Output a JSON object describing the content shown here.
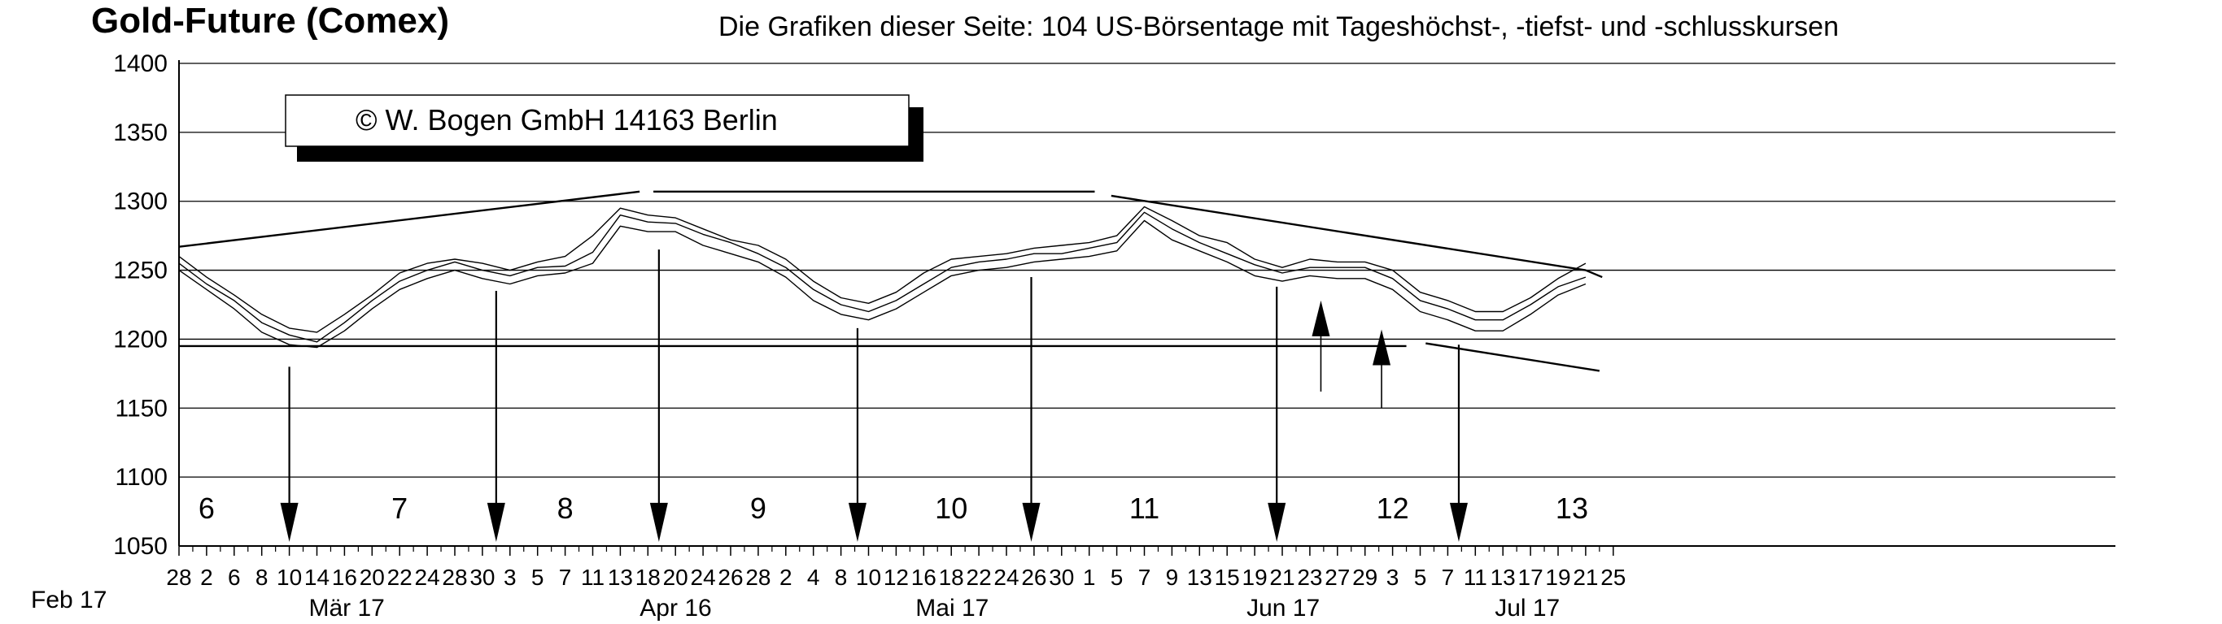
{
  "title": "Gold-Future (Comex)",
  "subtitle": "Die Grafiken dieser Seite: 104 US-Börsentage mit Tageshöchst-, -tiefst- und -schlusskursen",
  "copyright": "©  W. Bogen GmbH 14163 Berlin",
  "colors": {
    "line": "#000000",
    "grid": "#000000",
    "background": "#ffffff"
  },
  "chart_data": {
    "type": "line",
    "ylim": [
      1050,
      1400
    ],
    "yticks": [
      1050,
      1100,
      1150,
      1200,
      1250,
      1300,
      1350,
      1400
    ],
    "grid": "horizontal",
    "xticks": [
      "28",
      "2",
      "6",
      "8",
      "10",
      "14",
      "16",
      "20",
      "22",
      "24",
      "28",
      "30",
      "3",
      "5",
      "7",
      "11",
      "13",
      "18",
      "20",
      "24",
      "26",
      "28",
      "2",
      "4",
      "8",
      "10",
      "12",
      "16",
      "18",
      "22",
      "24",
      "26",
      "30",
      "1",
      "5",
      "7",
      "9",
      "13",
      "15",
      "19",
      "21",
      "23",
      "27",
      "29",
      "3",
      "5",
      "7",
      "11",
      "13",
      "17",
      "19",
      "21",
      "25"
    ],
    "months": [
      {
        "label": "Feb 17",
        "tick": 0
      },
      {
        "label": "Mär 17",
        "tick": 5
      },
      {
        "label": "Apr 16",
        "tick": 17
      },
      {
        "label": "Mai 17",
        "tick": 27
      },
      {
        "label": "Jun 17",
        "tick": 39
      },
      {
        "label": "Jul 17",
        "tick": 48
      }
    ],
    "cycle_labels": [
      {
        "label": "6",
        "tick": 1
      },
      {
        "label": "7",
        "tick": 8
      },
      {
        "label": "8",
        "tick": 14
      },
      {
        "label": "9",
        "tick": 21
      },
      {
        "label": "10",
        "tick": 28
      },
      {
        "label": "11",
        "tick": 35
      },
      {
        "label": "12",
        "tick": 44
      },
      {
        "label": "13",
        "tick": 50.5
      }
    ],
    "series": [
      {
        "x": [
          0,
          1,
          2,
          3,
          4,
          5,
          6,
          7,
          8,
          9,
          10,
          11,
          12,
          13,
          14,
          15,
          16,
          17,
          18,
          19,
          20,
          21,
          22,
          23,
          24,
          25,
          26,
          27,
          28,
          29,
          30,
          31,
          32,
          33,
          34,
          35,
          36,
          37,
          38,
          39,
          40,
          41,
          42,
          43,
          44,
          45,
          46,
          47,
          48,
          49,
          50,
          51
        ],
        "values": [
          1255,
          1240,
          1228,
          1212,
          1203,
          1198,
          1212,
          1228,
          1242,
          1250,
          1256,
          1250,
          1246,
          1252,
          1253,
          1263,
          1290,
          1285,
          1284,
          1276,
          1270,
          1262,
          1252,
          1236,
          1225,
          1220,
          1228,
          1240,
          1252,
          1256,
          1258,
          1262,
          1262,
          1266,
          1270,
          1292,
          1280,
          1270,
          1262,
          1254,
          1248,
          1252,
          1252,
          1252,
          1244,
          1228,
          1222,
          1214,
          1214,
          1225,
          1238,
          1245
        ]
      },
      {
        "x": [
          0,
          1,
          2,
          3,
          4,
          5,
          6,
          7,
          8,
          9,
          10,
          11,
          12,
          13,
          14,
          15,
          16,
          17,
          18,
          19,
          20,
          21,
          22,
          23,
          24,
          25,
          26,
          27,
          28,
          29,
          30,
          31,
          32,
          33,
          34,
          35,
          36,
          37,
          38,
          39,
          40,
          41,
          42,
          43,
          44,
          45,
          46,
          47,
          48,
          49,
          50,
          51
        ],
        "values": [
          1260,
          1245,
          1232,
          1218,
          1208,
          1205,
          1218,
          1232,
          1248,
          1255,
          1258,
          1255,
          1250,
          1256,
          1260,
          1275,
          1295,
          1290,
          1288,
          1280,
          1272,
          1268,
          1258,
          1242,
          1230,
          1226,
          1234,
          1248,
          1258,
          1260,
          1262,
          1266,
          1268,
          1270,
          1275,
          1296,
          1286,
          1275,
          1270,
          1258,
          1252,
          1258,
          1256,
          1256,
          1250,
          1234,
          1228,
          1220,
          1220,
          1230,
          1244,
          1255
        ]
      },
      {
        "x": [
          0,
          1,
          2,
          3,
          4,
          5,
          6,
          7,
          8,
          9,
          10,
          11,
          12,
          13,
          14,
          15,
          16,
          17,
          18,
          19,
          20,
          21,
          22,
          23,
          24,
          25,
          26,
          27,
          28,
          29,
          30,
          31,
          32,
          33,
          34,
          35,
          36,
          37,
          38,
          39,
          40,
          41,
          42,
          43,
          44,
          45,
          46,
          47,
          48,
          49,
          50,
          51
        ],
        "values": [
          1250,
          1236,
          1222,
          1205,
          1196,
          1194,
          1206,
          1222,
          1236,
          1244,
          1250,
          1244,
          1240,
          1246,
          1248,
          1255,
          1282,
          1278,
          1278,
          1268,
          1262,
          1256,
          1245,
          1228,
          1218,
          1214,
          1222,
          1234,
          1246,
          1250,
          1252,
          1256,
          1258,
          1260,
          1264,
          1286,
          1272,
          1264,
          1256,
          1246,
          1242,
          1246,
          1244,
          1244,
          1236,
          1220,
          1214,
          1206,
          1206,
          1218,
          1232,
          1240
        ]
      }
    ],
    "trend_lines": [
      {
        "x1": 0,
        "y1": 1267,
        "x2": 16.7,
        "y2": 1307
      },
      {
        "x1": 17.2,
        "y1": 1307,
        "x2": 33.2,
        "y2": 1307
      },
      {
        "x1": 33.8,
        "y1": 1304,
        "x2": 51,
        "y2": 1250
      },
      {
        "x1": 51,
        "y1": 1250,
        "x2": 51.6,
        "y2": 1245
      },
      {
        "x1": 0,
        "y1": 1195,
        "x2": 44.5,
        "y2": 1195
      },
      {
        "x1": 45.2,
        "y1": 1197,
        "x2": 51.5,
        "y2": 1177
      }
    ],
    "down_arrows": [
      {
        "x": 4,
        "y_from": 1180,
        "y_to": 1053
      },
      {
        "x": 11.5,
        "y_from": 1235,
        "y_to": 1053
      },
      {
        "x": 17.4,
        "y_from": 1265,
        "y_to": 1053
      },
      {
        "x": 24.6,
        "y_from": 1208,
        "y_to": 1053
      },
      {
        "x": 30.9,
        "y_from": 1245,
        "y_to": 1053
      },
      {
        "x": 39.8,
        "y_from": 1238,
        "y_to": 1053
      },
      {
        "x": 46.4,
        "y_from": 1196,
        "y_to": 1053
      }
    ],
    "up_arrows": [
      {
        "x": 41.4,
        "y_from": 1162,
        "y_to": 1228
      },
      {
        "x": 43.6,
        "y_from": 1150,
        "y_to": 1207
      }
    ]
  }
}
